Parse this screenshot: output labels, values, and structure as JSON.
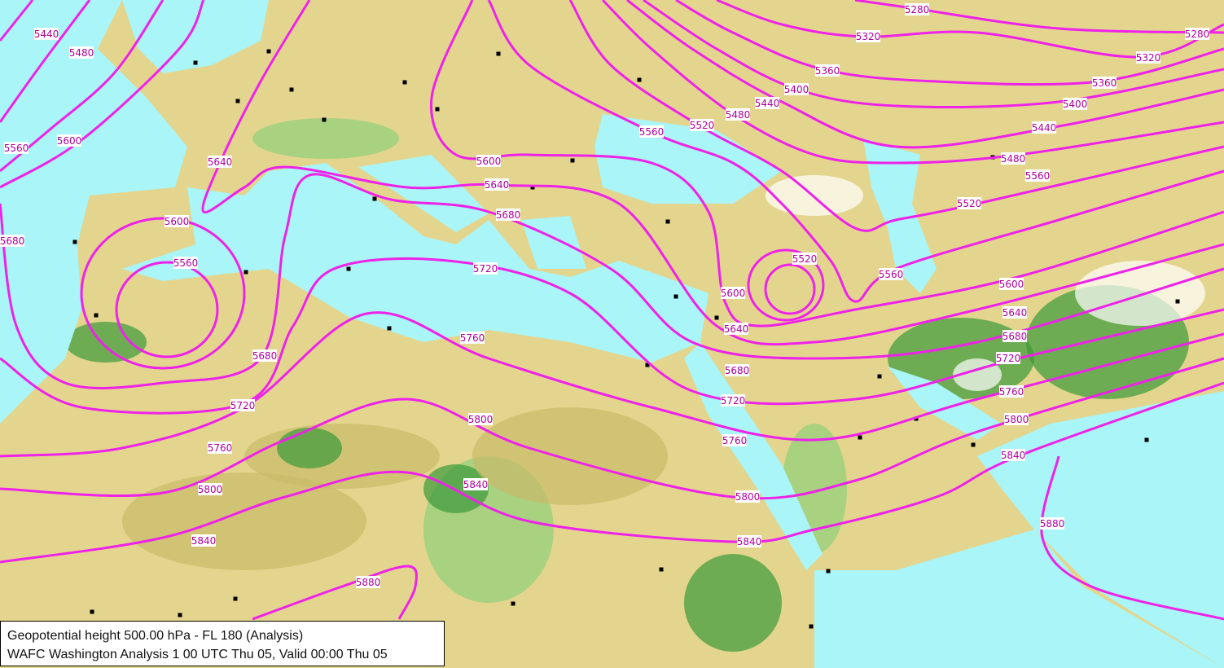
{
  "map": {
    "colors": {
      "sea": "#a9f5f7",
      "land": "#e4d58e",
      "land_dark": "#c9bb6a",
      "highland": "#8fcf7a",
      "mountain": "#3a9a3a",
      "snow": "#ffffff",
      "contour": "#ee22e8",
      "border": "#7a6a50",
      "city": "#000000"
    },
    "contour_labels": [
      "5280",
      "5280",
      "5320",
      "5320",
      "5360",
      "5360",
      "5400",
      "5400",
      "5440",
      "5440",
      "5440",
      "5480",
      "5480",
      "5480",
      "5520",
      "5520",
      "5520",
      "5520",
      "5560",
      "5560",
      "5560",
      "5560",
      "5560",
      "5600",
      "5600",
      "5600",
      "5600",
      "5600",
      "5640",
      "5640",
      "5640",
      "5640",
      "5680",
      "5680",
      "5680",
      "5680",
      "5680",
      "5720",
      "5720",
      "5720",
      "5720",
      "5760",
      "5760",
      "5760",
      "5760",
      "5800",
      "5800",
      "5800",
      "5800",
      "5840",
      "5840",
      "5840",
      "5840",
      "5880",
      "5880"
    ]
  },
  "caption": {
    "line1": "Geopotential height  500.00 hPa - FL 180 (Analysis)",
    "line2": "WAFC Washington Analysis 1 00 UTC Thu 05, Valid 00:00 Thu 05"
  }
}
